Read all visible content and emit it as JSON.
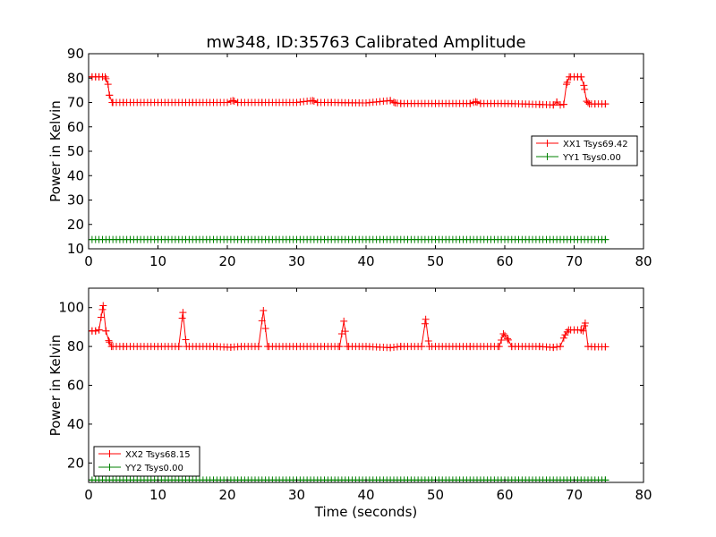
{
  "chart_data": [
    {
      "type": "line",
      "title": "mw348, ID:35763 Calibrated Amplitude",
      "xlabel": "",
      "ylabel": "Power in Kelvin",
      "xlim": [
        0,
        80
      ],
      "ylim": [
        10,
        90
      ],
      "xticks": [
        0,
        10,
        20,
        30,
        40,
        50,
        60,
        70,
        80
      ],
      "yticks": [
        10,
        20,
        30,
        40,
        50,
        60,
        70,
        80,
        90
      ],
      "legend_position": "center-right",
      "marker": "+",
      "series": [
        {
          "name": "XX1 Tsys69.42",
          "color": "#ff0000",
          "points": [
            [
              0.0,
              80.5
            ],
            [
              0.5,
              80.5
            ],
            [
              1.0,
              80.5
            ],
            [
              1.5,
              80.5
            ],
            [
              2.0,
              80.5
            ],
            [
              2.4,
              80.5
            ],
            [
              2.8,
              77.5
            ],
            [
              3.0,
              73.0
            ],
            [
              3.4,
              70.0
            ],
            [
              5,
              70
            ],
            [
              10,
              70
            ],
            [
              15,
              70
            ],
            [
              20,
              70
            ],
            [
              20.8,
              70.8
            ],
            [
              21.5,
              70
            ],
            [
              25,
              70
            ],
            [
              30,
              70
            ],
            [
              32.3,
              70.8
            ],
            [
              33,
              70
            ],
            [
              35,
              70
            ],
            [
              40,
              69.8
            ],
            [
              43.5,
              70.8
            ],
            [
              44.2,
              69.8
            ],
            [
              45,
              69.6
            ],
            [
              50,
              69.6
            ],
            [
              55,
              69.6
            ],
            [
              55.8,
              70.3
            ],
            [
              56.5,
              69.6
            ],
            [
              60,
              69.6
            ],
            [
              65,
              69.2
            ],
            [
              67,
              69.0
            ],
            [
              67.5,
              70.2
            ],
            [
              68,
              69.0
            ],
            [
              68.5,
              69.2
            ],
            [
              68.9,
              77.5
            ],
            [
              69.3,
              80.5
            ],
            [
              70,
              80.5
            ],
            [
              70.5,
              80.5
            ],
            [
              71,
              80.5
            ],
            [
              71.4,
              77.0
            ],
            [
              71.8,
              70.5
            ],
            [
              72.2,
              69.4
            ],
            [
              73,
              69.4
            ],
            [
              74,
              69.4
            ],
            [
              74.5,
              69.4
            ]
          ]
        },
        {
          "name": "YY1 Tsys0.00",
          "color": "#008000",
          "points": [
            [
              0,
              13.8
            ],
            [
              74.5,
              13.8
            ]
          ]
        }
      ]
    },
    {
      "type": "line",
      "title": "",
      "xlabel": "Time (seconds)",
      "ylabel": "Power in Kelvin",
      "xlim": [
        0,
        80
      ],
      "ylim": [
        10,
        110
      ],
      "xticks": [
        0,
        10,
        20,
        30,
        40,
        50,
        60,
        70,
        80
      ],
      "yticks": [
        20,
        40,
        60,
        80,
        100
      ],
      "legend_position": "lower-left",
      "marker": "+",
      "series": [
        {
          "name": "XX2 Tsys68.15",
          "color": "#ff0000",
          "points": [
            [
              0.0,
              88.0
            ],
            [
              0.5,
              88.0
            ],
            [
              1.0,
              88.0
            ],
            [
              1.5,
              88.5
            ],
            [
              1.8,
              95.0
            ],
            [
              2.1,
              101.0
            ],
            [
              2.5,
              88.0
            ],
            [
              2.9,
              83.0
            ],
            [
              3.3,
              80.0
            ],
            [
              5,
              80
            ],
            [
              10,
              80
            ],
            [
              13.0,
              80
            ],
            [
              13.6,
              97.5
            ],
            [
              14.1,
              80
            ],
            [
              18,
              80
            ],
            [
              20.5,
              79.6
            ],
            [
              22,
              80
            ],
            [
              24.5,
              80
            ],
            [
              25.2,
              98.5
            ],
            [
              25.8,
              80
            ],
            [
              30,
              80
            ],
            [
              36.2,
              80
            ],
            [
              36.8,
              93.0
            ],
            [
              37.3,
              80
            ],
            [
              40,
              80
            ],
            [
              43.5,
              79.4
            ],
            [
              45,
              80
            ],
            [
              48.0,
              80
            ],
            [
              48.6,
              94.0
            ],
            [
              49.1,
              80
            ],
            [
              55,
              80
            ],
            [
              59.2,
              80
            ],
            [
              59.8,
              86.5
            ],
            [
              60.4,
              84.0
            ],
            [
              61.0,
              80
            ],
            [
              65,
              80
            ],
            [
              67.0,
              79.5
            ],
            [
              68.0,
              80.0
            ],
            [
              68.7,
              86.0
            ],
            [
              69.2,
              88.5
            ],
            [
              70,
              88.5
            ],
            [
              71,
              88.5
            ],
            [
              71.3,
              88.0
            ],
            [
              71.6,
              92.0
            ],
            [
              72.0,
              80.0
            ],
            [
              73,
              79.8
            ],
            [
              74,
              79.8
            ],
            [
              74.5,
              79.8
            ]
          ]
        },
        {
          "name": "YY2 Tsys0.00",
          "color": "#008000",
          "points": [
            [
              0,
              11.2
            ],
            [
              74.5,
              11.2
            ]
          ]
        }
      ]
    }
  ]
}
